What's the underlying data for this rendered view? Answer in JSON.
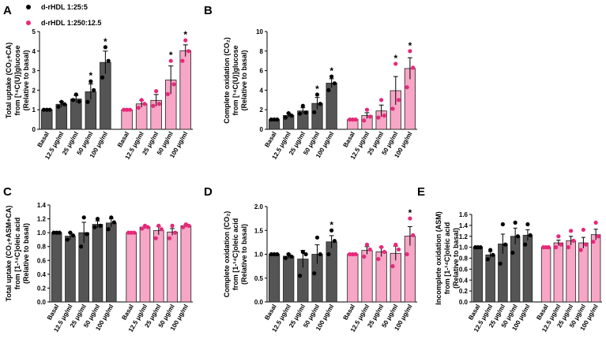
{
  "legend": [
    {
      "label": "d-rHDL 1:25:5",
      "color": "#000000"
    },
    {
      "label": "d-rHDL 1:250:12.5",
      "color": "#e8287a"
    }
  ],
  "colors": {
    "group1_fill": "#555555",
    "group1_dot": "#000000",
    "group2_fill": "#f7a6c6",
    "group2_dot": "#e8287a"
  },
  "chart_data": [
    {
      "panel": "A",
      "type": "bar",
      "ylabel_lines": [
        "Total uptake (CO₂+CA)",
        "from [¹⁴C(U)]glucose",
        "(Relative to basal)"
      ],
      "ylim": [
        0,
        5
      ],
      "yticks": [
        "0",
        "1",
        "2",
        "3",
        "4",
        "5"
      ],
      "categories": [
        "Basal",
        "12.5 μg/ml",
        "25 μg/ml",
        "50 μg/ml",
        "100 μg/ml"
      ],
      "series": [
        {
          "name": "d-rHDL 1:25:5",
          "values": [
            1.0,
            1.28,
            1.55,
            1.92,
            3.42
          ],
          "errors": [
            0.02,
            0.15,
            0.18,
            0.4,
            0.58
          ],
          "points": [
            [
              1,
              1,
              1
            ],
            [
              1.15,
              1.4,
              1.28
            ],
            [
              1.5,
              1.78,
              1.42
            ],
            [
              1.4,
              2.45,
              2.0
            ],
            [
              2.65,
              4.2,
              3.5
            ]
          ],
          "stars": [
            false,
            false,
            false,
            true,
            true
          ]
        },
        {
          "name": "d-rHDL 1:250:12.5",
          "values": [
            1.0,
            1.3,
            1.48,
            2.52,
            4.02
          ],
          "errors": [
            0.02,
            0.18,
            0.3,
            0.72,
            0.3
          ],
          "points": [
            [
              1,
              1,
              1
            ],
            [
              1.1,
              1.5,
              1.3
            ],
            [
              1.2,
              1.95,
              1.3
            ],
            [
              1.8,
              3.5,
              2.3
            ],
            [
              3.5,
              4.55,
              4.0
            ]
          ],
          "stars": [
            false,
            false,
            false,
            true,
            true
          ]
        }
      ]
    },
    {
      "panel": "B",
      "type": "bar",
      "ylabel_lines": [
        "Complete oxidation (CO₂)",
        "from [¹⁴C(U)]glucose",
        "(Relative to basal)"
      ],
      "ylim": [
        0,
        10
      ],
      "yticks": [
        "0",
        "2",
        "4",
        "6",
        "8",
        "10"
      ],
      "categories": [
        "Basal",
        "12.5 μg/ml",
        "25 μg/ml",
        "50 μg/ml",
        "100 μg/ml"
      ],
      "series": [
        {
          "name": "d-rHDL 1:25:5",
          "values": [
            1.0,
            1.42,
            1.88,
            2.65,
            4.72
          ],
          "errors": [
            0.02,
            0.2,
            0.32,
            0.6,
            0.45
          ],
          "points": [
            [
              1,
              1,
              1
            ],
            [
              1.2,
              1.65,
              1.4
            ],
            [
              1.6,
              2.4,
              1.7
            ],
            [
              1.75,
              3.55,
              2.6
            ],
            [
              4.0,
              5.4,
              4.7
            ]
          ],
          "stars": [
            false,
            false,
            false,
            true,
            true
          ]
        },
        {
          "name": "d-rHDL 1:250:12.5",
          "values": [
            1.0,
            1.4,
            1.88,
            3.95,
            6.22
          ],
          "errors": [
            0.02,
            0.3,
            0.6,
            1.45,
            1.1
          ],
          "points": [
            [
              1,
              1,
              1
            ],
            [
              0.9,
              2.0,
              1.3
            ],
            [
              1.2,
              3.0,
              1.4
            ],
            [
              2.1,
              6.7,
              3.0
            ],
            [
              4.3,
              8.0,
              6.3
            ]
          ],
          "stars": [
            false,
            false,
            false,
            true,
            true
          ]
        }
      ]
    },
    {
      "panel": "C",
      "type": "bar",
      "ylabel_lines": [
        "Total uptake (CO₂+ASM+CA)",
        "from [1-¹⁴C]oleic acid",
        "(Relative to basal)"
      ],
      "ylim": [
        0,
        1.4
      ],
      "yticks": [
        "0.0",
        "0.2",
        "0.4",
        "0.6",
        "0.8",
        "1.0",
        "1.2",
        "1.4"
      ],
      "categories": [
        "Basal",
        "12.5 μg/ml",
        "25 μg/ml",
        "50 μg/ml",
        "100 μg/ml"
      ],
      "series": [
        {
          "name": "d-rHDL 1:25:5",
          "values": [
            1.0,
            0.95,
            1.0,
            1.12,
            1.14
          ],
          "errors": [
            0.01,
            0.05,
            0.15,
            0.05,
            0.06
          ],
          "points": [
            [
              1,
              1,
              1
            ],
            [
              0.9,
              1.0,
              0.96
            ],
            [
              0.8,
              1.22,
              0.98
            ],
            [
              1.08,
              1.2,
              1.1
            ],
            [
              1.05,
              1.22,
              1.15
            ]
          ],
          "stars": [
            false,
            false,
            false,
            false,
            false
          ]
        },
        {
          "name": "d-rHDL 1:250:12.5",
          "values": [
            1.0,
            1.08,
            1.03,
            1.01,
            1.1
          ],
          "errors": [
            0.01,
            0.02,
            0.06,
            0.05,
            0.02
          ],
          "points": [
            [
              1,
              1,
              1
            ],
            [
              1.06,
              1.1,
              1.08
            ],
            [
              0.92,
              1.1,
              1.05
            ],
            [
              0.92,
              1.1,
              1.0
            ],
            [
              1.08,
              1.12,
              1.1
            ]
          ],
          "stars": [
            false,
            false,
            false,
            false,
            false
          ]
        }
      ]
    },
    {
      "panel": "D",
      "type": "bar",
      "ylabel_lines": [
        "Complete oxidation (CO₂)",
        "from [1-¹⁴C]oleic acid",
        "(Relative to basal)"
      ],
      "ylim": [
        0,
        2.0
      ],
      "yticks": [
        "0.0",
        "0.5",
        "1.0",
        "1.5",
        "2.0"
      ],
      "categories": [
        "Basal",
        "12.5 μg/ml",
        "25 μg/ml",
        "50 μg/ml",
        "100 μg/ml"
      ],
      "series": [
        {
          "name": "d-rHDL 1:25:5",
          "values": [
            1.0,
            0.96,
            0.9,
            1.0,
            1.26
          ],
          "errors": [
            0.01,
            0.05,
            0.18,
            0.2,
            0.13
          ],
          "points": [
            [
              1,
              1,
              1
            ],
            [
              0.92,
              1.0,
              0.95
            ],
            [
              0.55,
              1.05,
              1.0
            ],
            [
              0.6,
              1.35,
              1.0
            ],
            [
              1.0,
              1.5,
              1.28
            ]
          ],
          "stars": [
            false,
            false,
            false,
            false,
            true
          ]
        },
        {
          "name": "d-rHDL 1:250:12.5",
          "values": [
            1.0,
            1.08,
            1.05,
            1.02,
            1.38
          ],
          "errors": [
            0.01,
            0.08,
            0.1,
            0.15,
            0.2
          ],
          "points": [
            [
              1,
              1,
              1
            ],
            [
              0.95,
              1.2,
              1.1
            ],
            [
              0.9,
              1.15,
              1.05
            ],
            [
              0.75,
              1.2,
              1.1
            ],
            [
              1.0,
              1.75,
              1.4
            ]
          ],
          "stars": [
            false,
            false,
            false,
            false,
            true
          ]
        }
      ]
    },
    {
      "panel": "E",
      "type": "bar",
      "ylabel_lines": [
        "Incomplete oxidation (ASM)",
        "from [1-¹⁴C]oleic acid",
        "(Relative to basal)"
      ],
      "ylim": [
        0,
        1.6
      ],
      "yticks": [
        "0.0",
        "0.2",
        "0.4",
        "0.6",
        "0.8",
        "1.0",
        "1.2",
        "1.4",
        "1.6"
      ],
      "categories": [
        "Basal",
        "12.5 μg/ml",
        "25 μg/ml",
        "50 μg/ml",
        "100 μg/ml"
      ],
      "series": [
        {
          "name": "d-rHDL 1:25:5",
          "values": [
            1.0,
            0.86,
            1.06,
            1.2,
            1.22
          ],
          "errors": [
            0.01,
            0.06,
            0.18,
            0.15,
            0.1
          ],
          "points": [
            [
              1,
              1,
              1
            ],
            [
              0.78,
              0.95,
              0.86
            ],
            [
              0.7,
              1.42,
              1.05
            ],
            [
              0.9,
              1.45,
              1.2
            ],
            [
              1.05,
              1.42,
              1.22
            ]
          ],
          "stars": [
            false,
            false,
            false,
            false,
            false
          ]
        },
        {
          "name": "d-rHDL 1:250:12.5",
          "values": [
            1.0,
            1.08,
            1.12,
            1.08,
            1.23
          ],
          "errors": [
            0.01,
            0.05,
            0.08,
            0.1,
            0.1
          ],
          "points": [
            [
              1,
              1,
              1
            ],
            [
              1.0,
              1.2,
              1.05
            ],
            [
              1.0,
              1.3,
              1.12
            ],
            [
              0.95,
              1.32,
              1.05
            ],
            [
              1.1,
              1.45,
              1.2
            ]
          ],
          "stars": [
            false,
            false,
            false,
            false,
            false
          ]
        }
      ]
    }
  ]
}
